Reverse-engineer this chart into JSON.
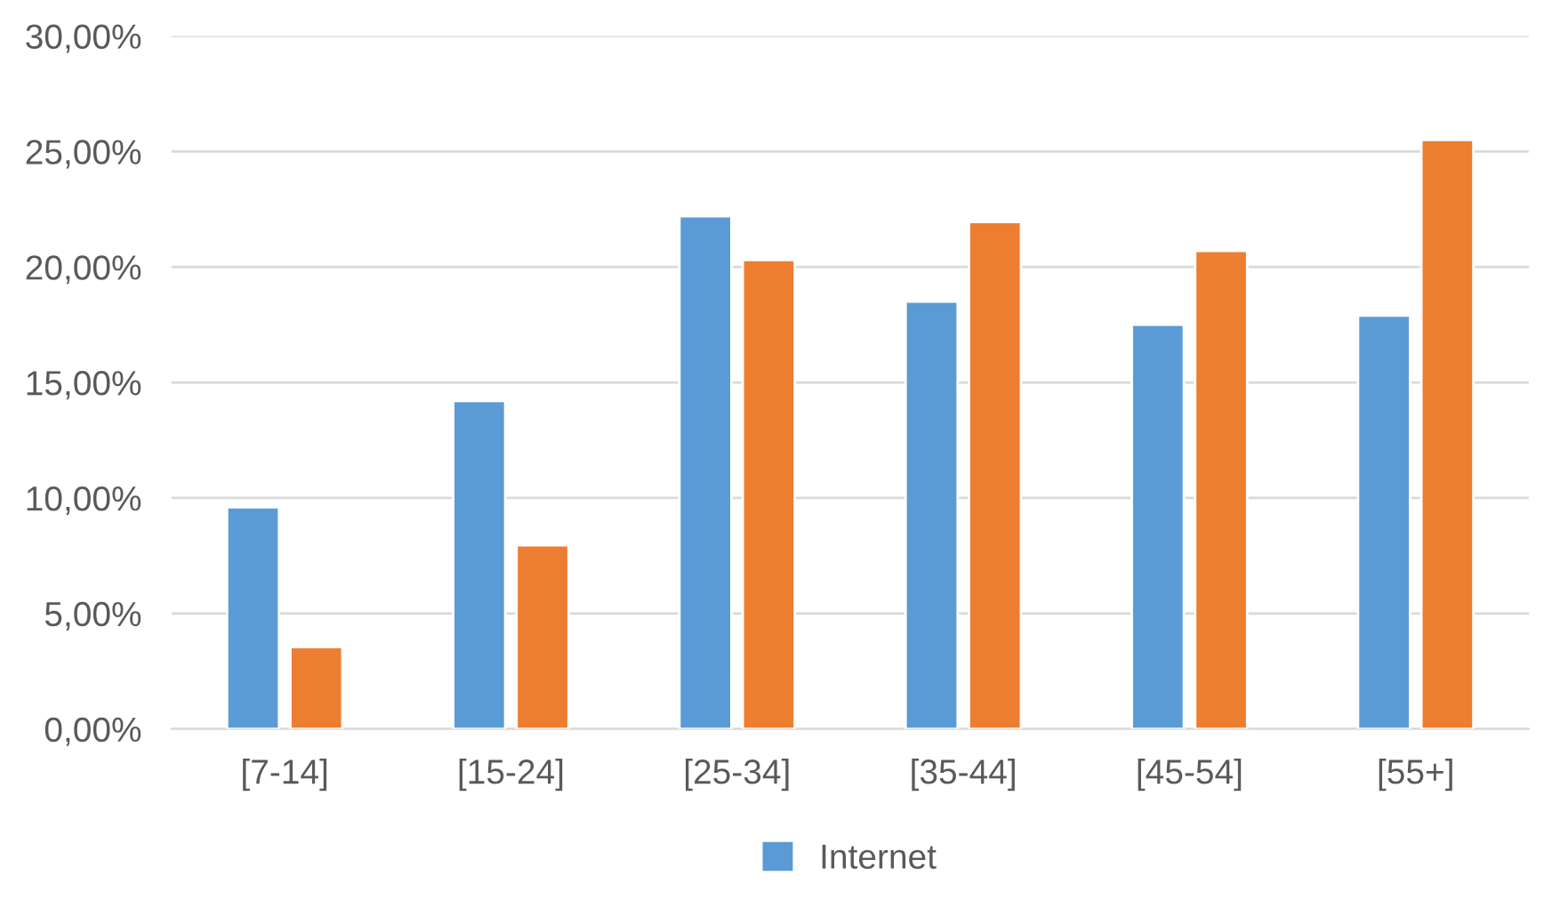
{
  "chart_data": {
    "type": "bar",
    "categories": [
      "[7-14]",
      "[15-24]",
      "[25-34]",
      "[35-44]",
      "[45-54]",
      "[55+]"
    ],
    "series": [
      {
        "name": "Internet",
        "color": "#5b9bd5",
        "values": [
          9.6,
          14.2,
          22.2,
          18.5,
          17.5,
          17.9
        ]
      },
      {
        "color": "#ed7d31",
        "values": [
          3.55,
          7.95,
          20.3,
          21.95,
          20.7,
          25.5
        ]
      }
    ],
    "ylim": [
      0,
      30
    ],
    "yticks": [
      {
        "value": 0,
        "label": "0,00%"
      },
      {
        "value": 5,
        "label": "5,00%"
      },
      {
        "value": 10,
        "label": "10,00%"
      },
      {
        "value": 15,
        "label": "15,00%"
      },
      {
        "value": 20,
        "label": "20,00%"
      },
      {
        "value": 25,
        "label": "25,00%"
      },
      {
        "value": 30,
        "label": "30,00%"
      }
    ],
    "grid": "y",
    "legend": "bottom"
  }
}
